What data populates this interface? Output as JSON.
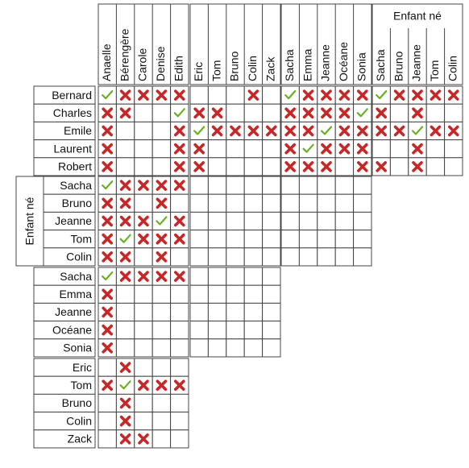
{
  "column_groups": [
    {
      "columns": [
        "Anaelle",
        "Bérengère",
        "Carole",
        "Denise",
        "Edith"
      ]
    },
    {
      "columns": [
        "Eric",
        "Tom",
        "Bruno",
        "Colin",
        "Zack"
      ]
    },
    {
      "columns": [
        "Sacha",
        "Emma",
        "Jeanne",
        "Océane",
        "Sonia"
      ]
    },
    {
      "label": "Enfant né",
      "columns": [
        "Sacha",
        "Bruno",
        "Jeanne",
        "Tom",
        "Colin"
      ]
    }
  ],
  "row_groups": [
    {
      "rows": [
        {
          "label": "Bernard",
          "cells": [
            [
              "check",
              "cross",
              "cross",
              "cross",
              "cross"
            ],
            [
              null,
              null,
              null,
              "cross",
              null
            ],
            [
              "check",
              "cross",
              "cross",
              "cross",
              "cross"
            ],
            [
              "check",
              "cross",
              "cross",
              "cross",
              "cross"
            ]
          ]
        },
        {
          "label": "Charles",
          "cells": [
            [
              "cross",
              "cross",
              null,
              null,
              "check"
            ],
            [
              "cross",
              "cross",
              null,
              null,
              null
            ],
            [
              "cross",
              "cross",
              "cross",
              "cross",
              "check"
            ],
            [
              "cross",
              null,
              "cross",
              null,
              null
            ]
          ]
        },
        {
          "label": "Emile",
          "cells": [
            [
              "cross",
              null,
              null,
              null,
              "cross"
            ],
            [
              "check",
              "cross",
              "cross",
              "cross",
              "cross"
            ],
            [
              "cross",
              "cross",
              "check",
              "cross",
              "cross"
            ],
            [
              "cross",
              "cross",
              "check",
              "cross",
              "cross"
            ]
          ]
        },
        {
          "label": "Laurent",
          "cells": [
            [
              "cross",
              null,
              null,
              null,
              "cross"
            ],
            [
              "cross",
              null,
              null,
              null,
              null
            ],
            [
              "cross",
              "check",
              "cross",
              "cross",
              "cross"
            ],
            [
              null,
              null,
              "cross",
              null,
              null
            ]
          ]
        },
        {
          "label": "Robert",
          "cells": [
            [
              "cross",
              null,
              null,
              null,
              "cross"
            ],
            [
              "cross",
              null,
              null,
              null,
              null
            ],
            [
              "cross",
              "cross",
              "cross",
              null,
              "cross"
            ],
            [
              "cross",
              null,
              "cross",
              null,
              null
            ]
          ]
        }
      ]
    },
    {
      "label": "Enfant né",
      "rows": [
        {
          "label": "Sacha",
          "cells": [
            [
              "check",
              "cross",
              "cross",
              "cross",
              "cross"
            ],
            [
              null,
              null,
              null,
              null,
              null
            ],
            [
              null,
              null,
              null,
              null,
              null
            ]
          ]
        },
        {
          "label": "Bruno",
          "cells": [
            [
              "cross",
              "cross",
              null,
              "cross",
              null
            ],
            [
              null,
              null,
              null,
              null,
              null
            ],
            [
              null,
              null,
              null,
              null,
              null
            ]
          ]
        },
        {
          "label": "Jeanne",
          "cells": [
            [
              "cross",
              "cross",
              "cross",
              "check",
              "cross"
            ],
            [
              null,
              null,
              null,
              null,
              null
            ],
            [
              null,
              null,
              null,
              null,
              null
            ]
          ]
        },
        {
          "label": "Tom",
          "cells": [
            [
              "cross",
              "check",
              "cross",
              "cross",
              "cross"
            ],
            [
              null,
              null,
              null,
              null,
              null
            ],
            [
              null,
              null,
              null,
              null,
              null
            ]
          ]
        },
        {
          "label": "Colin",
          "cells": [
            [
              "cross",
              "cross",
              null,
              "cross",
              null
            ],
            [
              null,
              null,
              null,
              null,
              null
            ],
            [
              null,
              null,
              null,
              null,
              null
            ]
          ]
        }
      ]
    },
    {
      "rows": [
        {
          "label": "Sacha",
          "cells": [
            [
              "check",
              "cross",
              "cross",
              "cross",
              "cross"
            ],
            [
              null,
              null,
              null,
              null,
              null
            ]
          ]
        },
        {
          "label": "Emma",
          "cells": [
            [
              "cross",
              null,
              null,
              null,
              null
            ],
            [
              null,
              null,
              null,
              null,
              null
            ]
          ]
        },
        {
          "label": "Jeanne",
          "cells": [
            [
              "cross",
              null,
              null,
              null,
              null
            ],
            [
              null,
              null,
              null,
              null,
              null
            ]
          ]
        },
        {
          "label": "Océane",
          "cells": [
            [
              "cross",
              null,
              null,
              null,
              null
            ],
            [
              null,
              null,
              null,
              null,
              null
            ]
          ]
        },
        {
          "label": "Sonia",
          "cells": [
            [
              "cross",
              null,
              null,
              null,
              null
            ],
            [
              null,
              null,
              null,
              null,
              null
            ]
          ]
        }
      ]
    },
    {
      "rows": [
        {
          "label": "Eric",
          "cells": [
            [
              null,
              "cross",
              null,
              null,
              null
            ]
          ]
        },
        {
          "label": "Tom",
          "cells": [
            [
              "cross",
              "check",
              "cross",
              "cross",
              "cross"
            ]
          ]
        },
        {
          "label": "Bruno",
          "cells": [
            [
              null,
              "cross",
              null,
              null,
              null
            ]
          ]
        },
        {
          "label": "Colin",
          "cells": [
            [
              null,
              "cross",
              null,
              null,
              null
            ]
          ]
        },
        {
          "label": "Zack",
          "cells": [
            [
              null,
              "cross",
              "cross",
              null,
              null
            ]
          ]
        }
      ]
    }
  ]
}
